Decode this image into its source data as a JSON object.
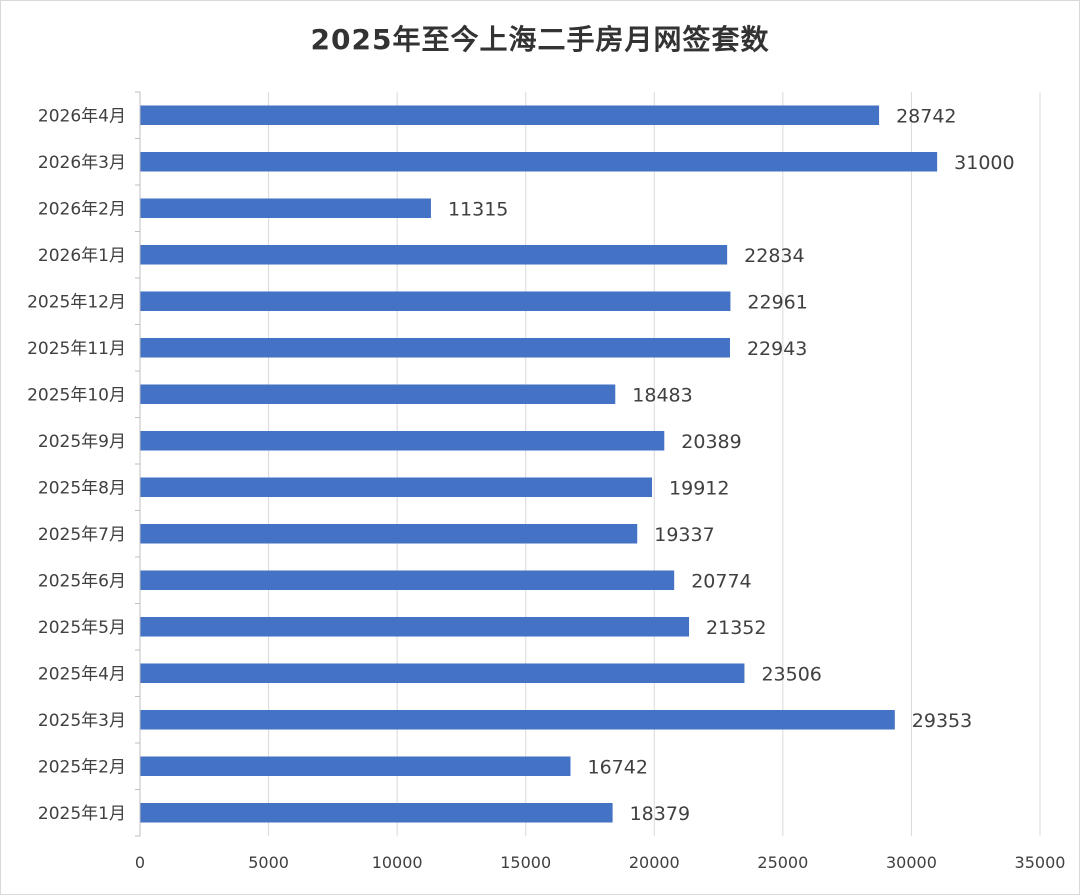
{
  "chart_data": {
    "type": "bar",
    "orientation": "horizontal",
    "title": "2025年至今上海二手房月网签套数",
    "xlabel": "",
    "ylabel": "",
    "xlim": [
      0,
      35000
    ],
    "x_ticks": [
      0,
      5000,
      10000,
      15000,
      20000,
      25000,
      30000,
      35000
    ],
    "grid": true,
    "legend": "none",
    "bar_color": "#4472C4",
    "categories": [
      "2026年4月",
      "2026年3月",
      "2026年2月",
      "2026年1月",
      "2025年12月",
      "2025年11月",
      "2025年10月",
      "2025年9月",
      "2025年8月",
      "2025年7月",
      "2025年6月",
      "2025年5月",
      "2025年4月",
      "2025年3月",
      "2025年2月",
      "2025年1月"
    ],
    "values": [
      28742,
      31000,
      11315,
      22834,
      22961,
      22943,
      18483,
      20389,
      19912,
      19337,
      20774,
      21352,
      23506,
      29353,
      16742,
      18379
    ]
  }
}
